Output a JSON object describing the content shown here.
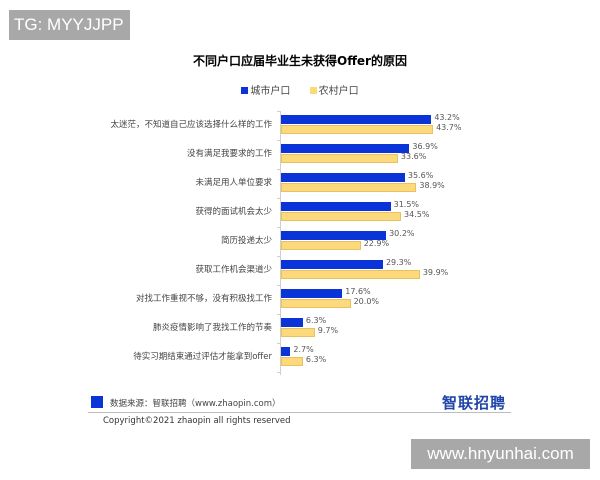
{
  "watermarks": {
    "top_left": "TG: MYYJJPP",
    "bottom_right": "www.hnyunhai.com"
  },
  "colors": {
    "urban": "#0a34d8",
    "rural": "#fcd97a"
  },
  "chart_data": {
    "type": "bar",
    "orientation": "horizontal",
    "title": "不同户口应届毕业生未获得Offer的原因",
    "xlabel": "",
    "ylabel": "",
    "grid": false,
    "legend_position": "top",
    "unit": "%",
    "categories": [
      "太迷茫，不知道自己应该选择什么样的工作",
      "没有满足我要求的工作",
      "未满足用人单位要求",
      "获得的面试机会太少",
      "简历投递太少",
      "获取工作机会渠道少",
      "对找工作重视不够，没有积极找工作",
      "肺炎疫情影响了我找工作的节奏",
      "待实习期结束通过评估才能拿到offer"
    ],
    "series": [
      {
        "name": "城市户口",
        "color": "#0a34d8",
        "values": [
          43.2,
          36.9,
          35.6,
          31.5,
          30.2,
          29.3,
          17.6,
          6.3,
          2.7
        ],
        "labels": [
          "43.2%",
          "36.9%",
          "35.6%",
          "31.5%",
          "30.2%",
          "29.3%",
          "17.6%",
          "6.3%",
          "2.7%"
        ]
      },
      {
        "name": "农村户口",
        "color": "#fcd97a",
        "values": [
          43.7,
          33.6,
          38.9,
          34.5,
          22.9,
          39.9,
          20.0,
          9.7,
          6.3
        ],
        "labels": [
          "43.7%",
          "33.6%",
          "38.9%",
          "34.5%",
          "22.9%",
          "39.9%",
          "20.0%",
          "9.7%",
          "6.3%"
        ]
      }
    ],
    "xlim": [
      0,
      50
    ]
  },
  "footer": {
    "source": "数据来源：智联招聘（www.zhaopin.com）",
    "logo": "智联招聘",
    "copyright": "Copyright©2021 zhaopin all rights reserved"
  }
}
